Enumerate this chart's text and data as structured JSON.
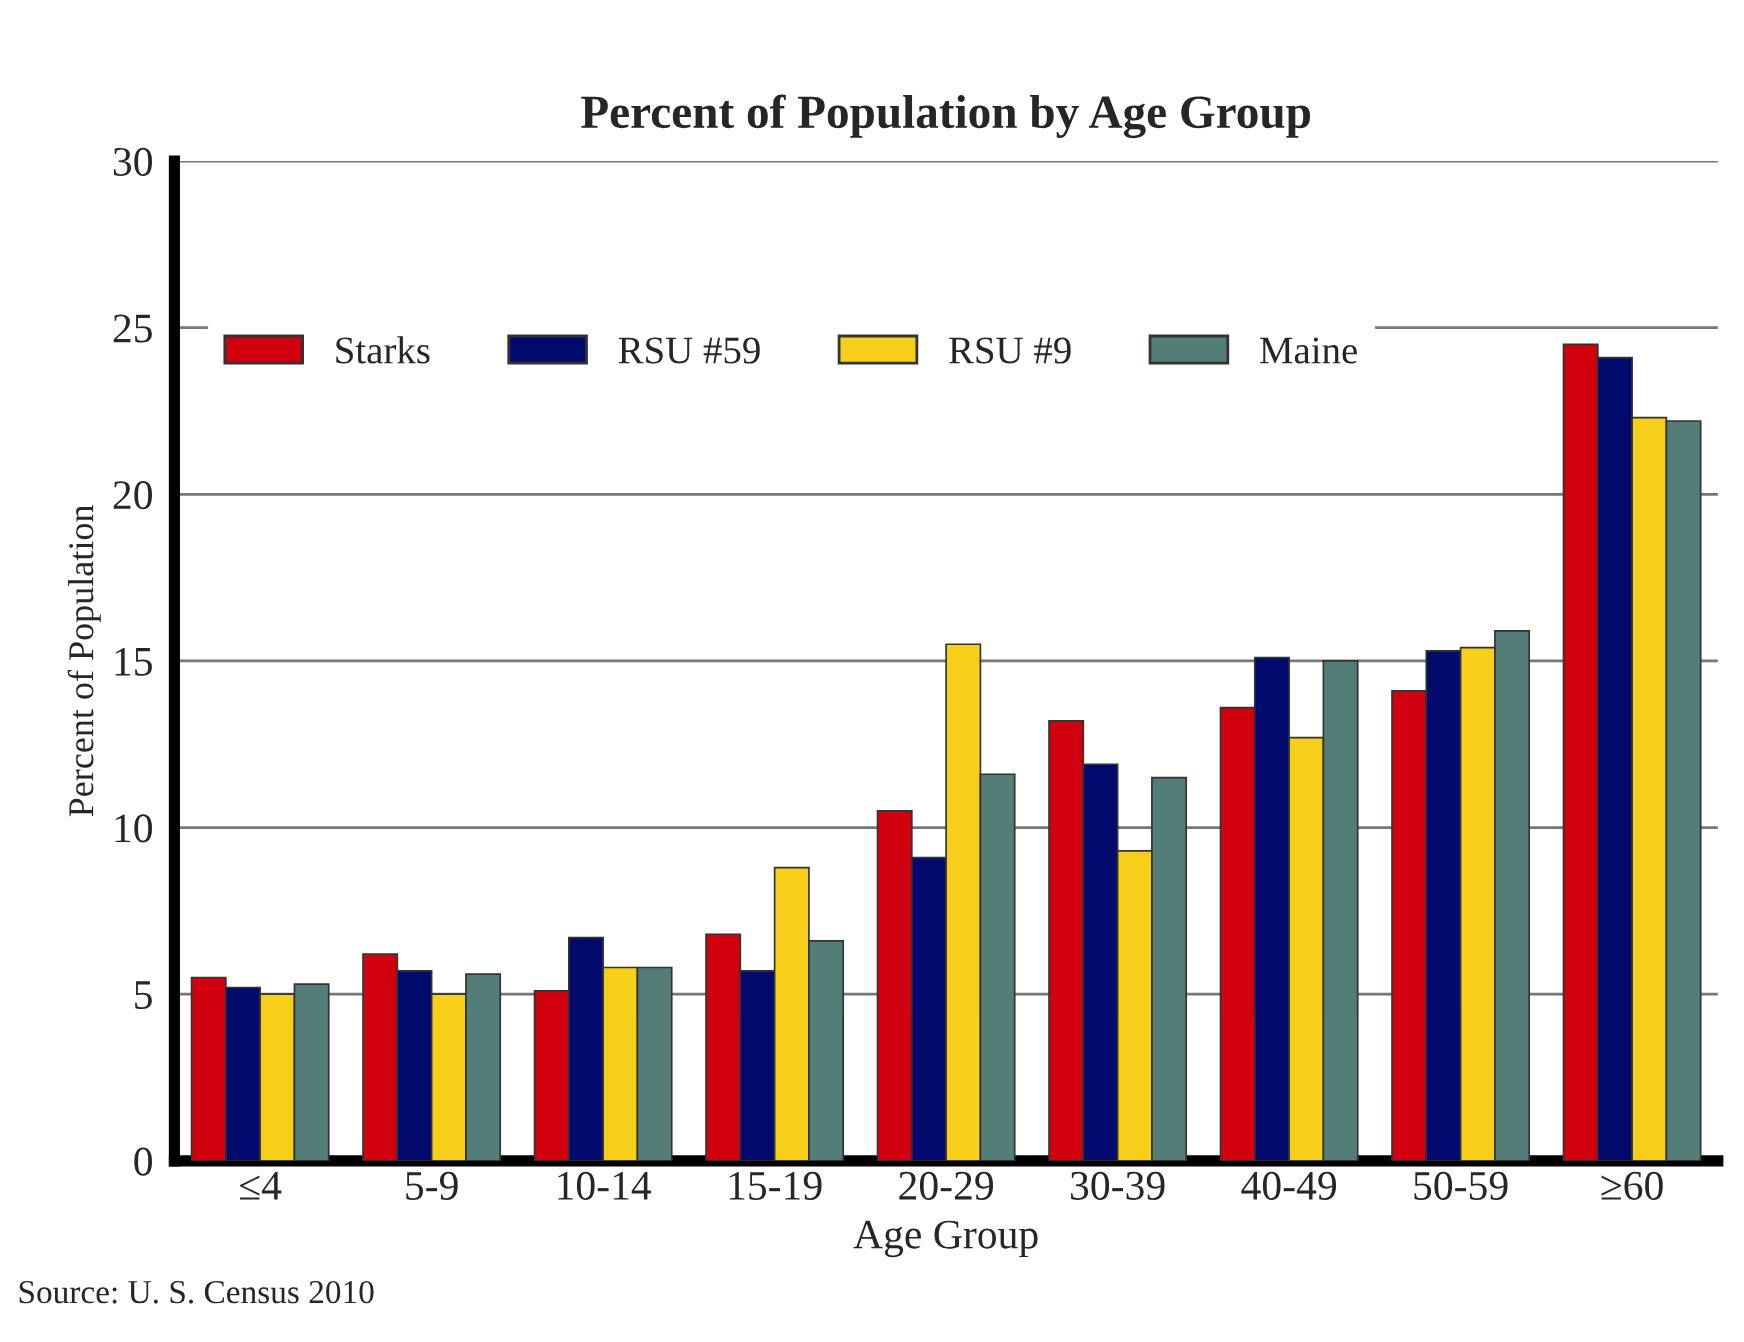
{
  "chart_data": {
    "type": "bar",
    "title": "Percent of Population by Age Group",
    "xlabel": "Age Group",
    "ylabel": "Percent of Population",
    "categories": [
      "≤4",
      "5-9",
      "10-14",
      "15-19",
      "20-29",
      "30-39",
      "40-49",
      "50-59",
      "≥60"
    ],
    "series": [
      {
        "name": "Starks",
        "color": "#d0000f",
        "values": [
          5.5,
          6.2,
          5.1,
          6.8,
          10.5,
          13.2,
          13.6,
          14.1,
          24.5
        ]
      },
      {
        "name": "RSU #59",
        "color": "#020a6e",
        "values": [
          5.2,
          5.7,
          6.7,
          5.7,
          9.1,
          11.9,
          15.1,
          15.3,
          24.1
        ]
      },
      {
        "name": "RSU #9",
        "color": "#f7cf1b",
        "values": [
          5.0,
          5.0,
          5.8,
          8.8,
          15.5,
          9.3,
          12.7,
          15.4,
          22.3
        ]
      },
      {
        "name": "Maine",
        "color": "#537d77",
        "values": [
          5.3,
          5.6,
          5.8,
          6.6,
          11.6,
          11.5,
          15.0,
          15.9,
          22.2
        ]
      }
    ],
    "ylim": [
      0,
      30
    ],
    "yticks": [
      0,
      5,
      10,
      15,
      20,
      25,
      30
    ],
    "grid": "y",
    "legend": "top left",
    "annotations": [
      "Source: U. S. Census 2010"
    ]
  }
}
